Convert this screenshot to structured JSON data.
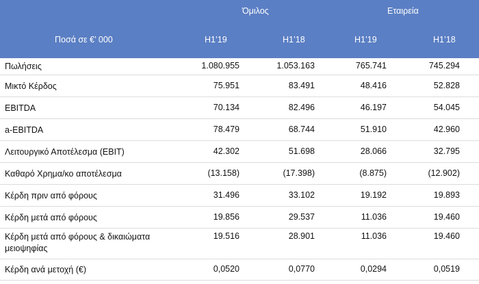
{
  "header": {
    "amount_label": "Ποσά  σε €’ 000",
    "group_label": "Όμιλος",
    "company_label": "Εταιρεία",
    "columns": [
      "H1’19",
      "H1’18",
      "H1’19",
      "H1’18"
    ]
  },
  "rows": [
    {
      "label": "Πωλήσεις",
      "values": [
        "1.080.955",
        "1.053.163",
        "765.741",
        "745.294"
      ]
    },
    {
      "label": "Μικτό Κέρδος",
      "values": [
        "75.951",
        "83.491",
        "48.416",
        "52.828"
      ]
    },
    {
      "label": "EBITDA",
      "values": [
        "70.134",
        "82.496",
        "46.197",
        "54.045"
      ]
    },
    {
      "label": "a-EBITDA",
      "values": [
        "78.479",
        "68.744",
        "51.910",
        "42.960"
      ]
    },
    {
      "label": "Λειτουργικό Αποτέλεσμα (EBIT)",
      "values": [
        "42.302",
        "51.698",
        "28.066",
        "32.795"
      ]
    },
    {
      "label": "Καθαρό Χρημα/κο αποτέλεσμα",
      "values": [
        "(13.158)",
        "(17.398)",
        "(8.875)",
        "(12.902)"
      ]
    },
    {
      "label": "Κέρδη πριν από φόρους",
      "values": [
        "31.496",
        "33.102",
        "19.192",
        "19.893"
      ]
    },
    {
      "label": "Κέρδη μετά από φόρους",
      "values": [
        "19.856",
        "29.537",
        "11.036",
        "19.460"
      ]
    },
    {
      "label": "Κέρδη μετά από φόρους & δικαιώματα μειοψηφίας",
      "values": [
        "19.516",
        "28.901",
        "11.036",
        "19.460"
      ]
    },
    {
      "label": "Κέρδη ανά μετοχή (€)",
      "values": [
        "0,0520",
        "0,0770",
        "0,0294",
        "0,0519"
      ]
    }
  ]
}
